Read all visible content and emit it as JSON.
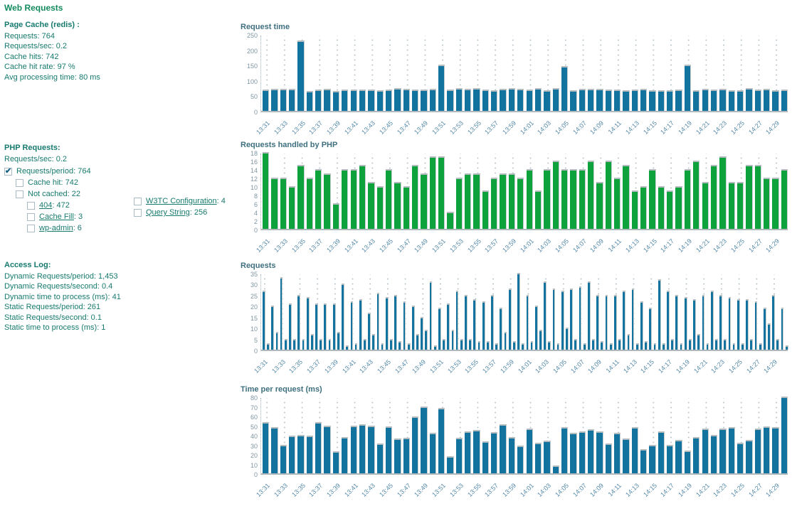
{
  "page": {
    "title": "Web Requests"
  },
  "colors": {
    "text_teal": "#177a6e",
    "title_green": "#128a5e",
    "bar_blue": "#11739e",
    "bar_green": "#0da23c"
  },
  "page_cache": {
    "heading": "Page Cache (redis) :",
    "lines": [
      "Requests: 764",
      "Requests/sec: 0.2",
      "Cache hits: 742",
      "Cache hit rate: 97 %",
      "Avg processing time: 80 ms"
    ]
  },
  "php_requests": {
    "heading": "PHP Requests:",
    "line": "Requests/sec: 0.2",
    "checkboxes": [
      {
        "label": "Requests/period: 764",
        "checked": true
      },
      {
        "label": "Cache hit: 742",
        "checked": false
      },
      {
        "label": "Not cached: 22",
        "checked": false
      },
      {
        "link": "404",
        "suffix": ": 472",
        "checked": false
      },
      {
        "link": "Cache Fill",
        "suffix": ": 3",
        "checked": false
      },
      {
        "link": "wp-admin",
        "suffix": ": 6",
        "checked": false
      }
    ],
    "right_checkboxes": [
      {
        "link": "W3TC Configuration",
        "suffix": ": 4",
        "checked": false
      },
      {
        "link": "Query String",
        "suffix": ": 256",
        "checked": false
      }
    ]
  },
  "access_log": {
    "heading": "Access Log:",
    "lines": [
      "Dynamic Requests/period: 1,453",
      "Dynamic Requests/second: 0.4",
      "Dynamic time to process (ms): 41",
      "Static Requests/period: 261",
      "Static Requests/second: 0.1",
      "Static time to process (ms): 1"
    ]
  },
  "chart_data": {
    "time_labels": [
      "13:31",
      "13:33",
      "13:35",
      "13:37",
      "13:39",
      "13:41",
      "13:43",
      "13:45",
      "13:47",
      "13:49",
      "13:51",
      "13:53",
      "13:55",
      "13:57",
      "13:59",
      "14:01",
      "14:03",
      "14:05",
      "14:07",
      "14:09",
      "14:11",
      "14:13",
      "14:15",
      "14:17",
      "14:19",
      "14:21",
      "14:23",
      "14:25",
      "14:27",
      "14:29"
    ],
    "charts": [
      {
        "id": "request-time",
        "type": "bar",
        "title": "Request time",
        "color": "#11739e",
        "ylim": [
          0,
          250
        ],
        "y_ticks": [
          0,
          50,
          100,
          150,
          200,
          250
        ],
        "values": [
          70,
          72,
          72,
          72,
          230,
          66,
          70,
          72,
          66,
          70,
          70,
          70,
          70,
          68,
          70,
          75,
          72,
          70,
          70,
          72,
          150,
          70,
          75,
          72,
          75,
          70,
          68,
          72,
          75,
          72,
          70,
          75,
          68,
          75,
          145,
          68,
          72,
          72,
          72,
          70,
          70,
          68,
          70,
          72,
          68,
          68,
          68,
          70,
          150,
          68,
          72,
          70,
          72,
          68,
          68,
          75,
          70,
          72,
          68,
          70
        ]
      },
      {
        "id": "php-handled",
        "type": "bar",
        "title": "Requests handled by PHP",
        "color": "#0da23c",
        "ylim": [
          0,
          18
        ],
        "y_ticks": [
          0,
          2,
          4,
          6,
          8,
          10,
          12,
          14,
          16,
          18
        ],
        "values": [
          18,
          12,
          12,
          10,
          15,
          12,
          14,
          13,
          6,
          14,
          14,
          15,
          11,
          10,
          14,
          11,
          10,
          15,
          13,
          17,
          17,
          4,
          12,
          13,
          13,
          9,
          12,
          13,
          13,
          12,
          14,
          9,
          14,
          16,
          14,
          14,
          14,
          16,
          11,
          16,
          12,
          15,
          9,
          10,
          14,
          10,
          9,
          10,
          14,
          16,
          11,
          15,
          17,
          11,
          11,
          15,
          15,
          12,
          12,
          14
        ]
      },
      {
        "id": "requests",
        "type": "bar",
        "title": "Requests",
        "color": "#11739e",
        "ylim": [
          0,
          35
        ],
        "y_ticks": [
          0,
          5,
          10,
          15,
          20,
          25,
          30,
          35
        ],
        "values": [
          27,
          3,
          20,
          8,
          33,
          5,
          21,
          5,
          25,
          5,
          24,
          7,
          21,
          5,
          21,
          5,
          21,
          8,
          30,
          2,
          22,
          3,
          23,
          5,
          17,
          7,
          26,
          3,
          24,
          5,
          25,
          4,
          22,
          3,
          20,
          7,
          15,
          9,
          31,
          2,
          19,
          5,
          21,
          9,
          27,
          5,
          25,
          5,
          23,
          4,
          22,
          4,
          25,
          3,
          19,
          8,
          28,
          4,
          35,
          3,
          25,
          4,
          20,
          9,
          31,
          4,
          28,
          3,
          27,
          10,
          28,
          5,
          29,
          3,
          31,
          5,
          25,
          4,
          25,
          3,
          25,
          5,
          27,
          7,
          28,
          3,
          22,
          4,
          19,
          3,
          32,
          3,
          27,
          5,
          25,
          3,
          24,
          5,
          23,
          7,
          25,
          3,
          27,
          5,
          25,
          5,
          24,
          3,
          23,
          3,
          23,
          5,
          22,
          3,
          19,
          12,
          25,
          5,
          19,
          2
        ]
      },
      {
        "id": "time-per-request",
        "type": "bar",
        "title": "Time per request (ms)",
        "color": "#11739e",
        "ylim": [
          0,
          80
        ],
        "y_ticks": [
          0,
          10,
          20,
          30,
          40,
          50,
          60,
          70,
          80
        ],
        "values": [
          53,
          48,
          30,
          39,
          40,
          39,
          53,
          50,
          23,
          38,
          50,
          51,
          50,
          31,
          49,
          36,
          37,
          59,
          70,
          42,
          68,
          18,
          37,
          44,
          45,
          33,
          43,
          51,
          38,
          29,
          47,
          32,
          34,
          8,
          48,
          42,
          44,
          46,
          44,
          31,
          42,
          36,
          48,
          25,
          30,
          44,
          30,
          35,
          24,
          38,
          47,
          40,
          47,
          48,
          32,
          35,
          47,
          49,
          48,
          80
        ]
      }
    ]
  }
}
